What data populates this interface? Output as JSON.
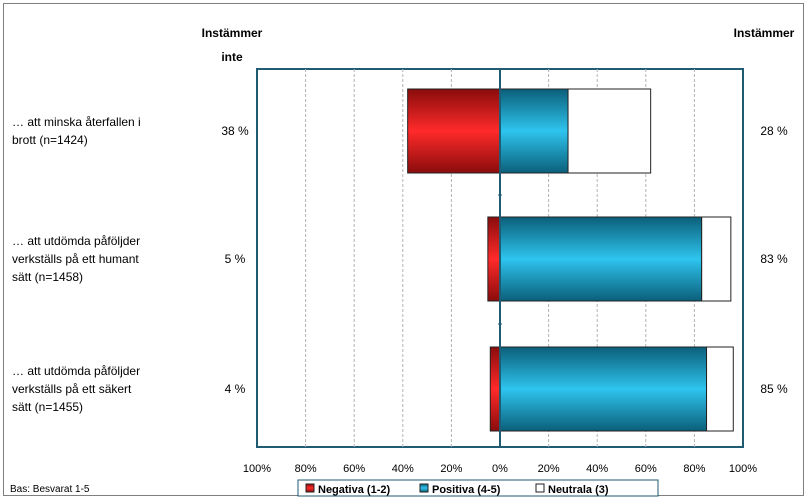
{
  "chart_data": {
    "type": "bar",
    "orientation": "horizontal-diverging",
    "header_left_line1": "Instämmer",
    "header_left_line2": "inte",
    "header_right": "Instämmer",
    "categories": [
      [
        "… att minska återfallen i",
        "brott (n=1424)"
      ],
      [
        "… att utdömda påföljder",
        "verkställs på ett humant",
        "sätt (n=1458)"
      ],
      [
        "… att utdömda påföljder",
        "verkställs på ett säkert",
        "sätt (n=1455)"
      ]
    ],
    "left_labels": [
      "38 %",
      "5 %",
      "4 %"
    ],
    "right_labels": [
      "28 %",
      "83 %",
      "85 %"
    ],
    "series": [
      {
        "name": "Negativa (1-2)",
        "values": [
          38,
          5,
          4
        ],
        "color": "#d41515",
        "direction": "left"
      },
      {
        "name": "Positiva (4-5)",
        "values": [
          28,
          83,
          85
        ],
        "color": "#1ab4dd",
        "direction": "right"
      },
      {
        "name": "Neutrala (3)",
        "values": [
          34,
          12,
          11
        ],
        "color": "#ffffff",
        "direction": "right"
      }
    ],
    "x_ticks": [
      "100%",
      "80%",
      "60%",
      "40%",
      "20%",
      "0%",
      "20%",
      "40%",
      "60%",
      "80%",
      "100%"
    ],
    "xlim": [
      -100,
      100
    ],
    "grid": true,
    "legend_position": "bottom",
    "basis_note": "Bas: Besvarat 1-5"
  }
}
